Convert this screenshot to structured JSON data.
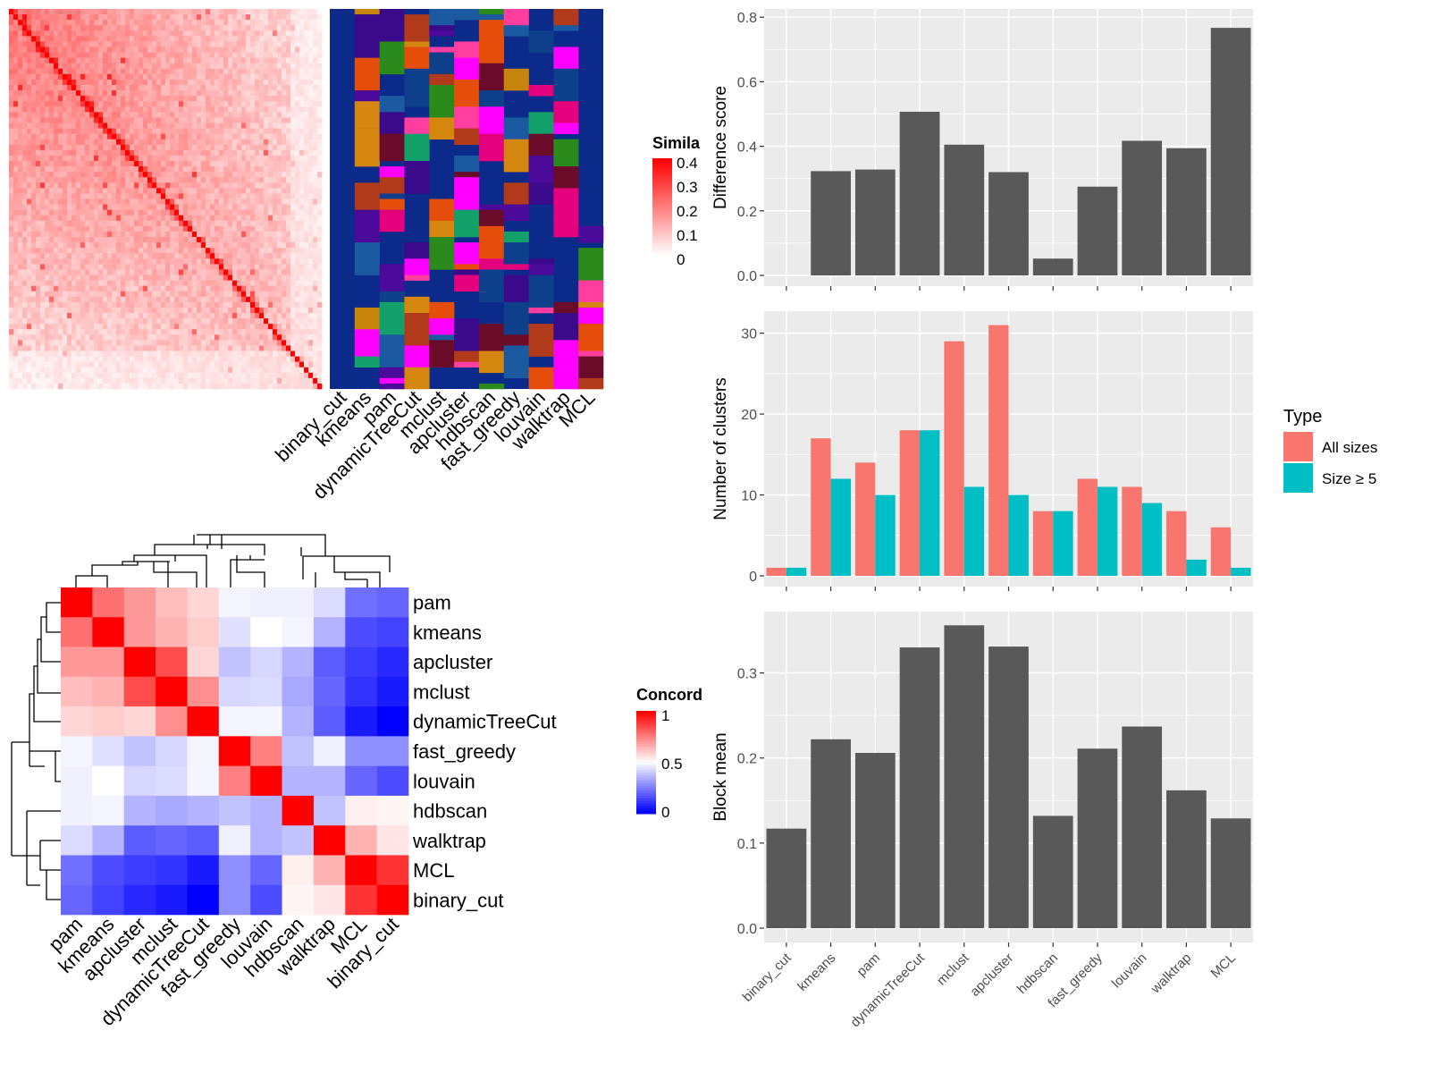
{
  "methods_order": [
    "binary_cut",
    "kmeans",
    "pam",
    "dynamicTreeCut",
    "mclust",
    "apcluster",
    "hdbscan",
    "fast_greedy",
    "louvain",
    "walktrap",
    "MCL"
  ],
  "similarity_heatmap": {
    "legend_title": "Simila",
    "legend_ticks": [
      "0.4",
      "0.3",
      "0.2",
      "0.1",
      "0"
    ],
    "high_color": "#ff0000",
    "low_color": "#ffffff"
  },
  "cluster_annotation": {
    "background_color": "#0b2a8a",
    "palette": [
      "#d4860f",
      "#c7850d",
      "#2a8a1c",
      "#ff00ff",
      "#e5007d",
      "#b03a1a",
      "#4b0a9a",
      "#e44e0a",
      "#1b5aa0",
      "#13a06a",
      "#6b0b2a",
      "#0e3f8a",
      "#ff3ea0",
      "#3a0a8a"
    ]
  },
  "concordance_heatmap": {
    "legend_title": "Concord",
    "legend_ticks": [
      "1",
      "0.5",
      "0"
    ],
    "row_labels": [
      "pam",
      "kmeans",
      "apcluster",
      "mclust",
      "dynamicTreeCut",
      "fast_greedy",
      "louvain",
      "hdbscan",
      "walktrap",
      "MCL",
      "binary_cut"
    ],
    "col_labels": [
      "pam",
      "kmeans",
      "apcluster",
      "mclust",
      "dynamicTreeCut",
      "fast_greedy",
      "louvain",
      "hdbscan",
      "walktrap",
      "MCL",
      "binary_cut"
    ],
    "matrix": [
      [
        1.0,
        0.78,
        0.7,
        0.63,
        0.58,
        0.48,
        0.47,
        0.47,
        0.43,
        0.22,
        0.2
      ],
      [
        0.78,
        1.0,
        0.7,
        0.65,
        0.6,
        0.44,
        0.5,
        0.48,
        0.35,
        0.15,
        0.13
      ],
      [
        0.7,
        0.7,
        1.0,
        0.85,
        0.58,
        0.38,
        0.42,
        0.35,
        0.18,
        0.12,
        0.08
      ],
      [
        0.63,
        0.65,
        0.85,
        1.0,
        0.72,
        0.42,
        0.43,
        0.33,
        0.2,
        0.1,
        0.05
      ],
      [
        0.58,
        0.6,
        0.58,
        0.72,
        1.0,
        0.48,
        0.48,
        0.35,
        0.18,
        0.05,
        0.0
      ],
      [
        0.48,
        0.44,
        0.38,
        0.42,
        0.48,
        1.0,
        0.75,
        0.38,
        0.47,
        0.28,
        0.28
      ],
      [
        0.47,
        0.5,
        0.42,
        0.43,
        0.48,
        0.75,
        1.0,
        0.35,
        0.35,
        0.2,
        0.15
      ],
      [
        0.47,
        0.48,
        0.35,
        0.33,
        0.35,
        0.38,
        0.35,
        1.0,
        0.38,
        0.53,
        0.52
      ],
      [
        0.43,
        0.35,
        0.18,
        0.2,
        0.18,
        0.47,
        0.35,
        0.38,
        1.0,
        0.65,
        0.55
      ],
      [
        0.22,
        0.15,
        0.12,
        0.1,
        0.05,
        0.28,
        0.2,
        0.53,
        0.65,
        1.0,
        0.9
      ],
      [
        0.2,
        0.13,
        0.08,
        0.05,
        0.0,
        0.28,
        0.15,
        0.52,
        0.55,
        0.9,
        1.0
      ]
    ],
    "high_color": "#ff0000",
    "mid_color": "#ffffff",
    "low_color": "#0000ff"
  },
  "chart_data": [
    {
      "type": "bar",
      "ylabel": "Difference score",
      "categories": [
        "binary_cut",
        "kmeans",
        "pam",
        "dynamicTreeCut",
        "mclust",
        "apcluster",
        "hdbscan",
        "fast_greedy",
        "louvain",
        "walktrap",
        "MCL"
      ],
      "values": [
        0.0,
        0.323,
        0.328,
        0.507,
        0.405,
        0.32,
        0.052,
        0.275,
        0.417,
        0.394,
        0.767
      ],
      "ylim": [
        0,
        0.82
      ],
      "yticks": [
        0.0,
        0.2,
        0.4,
        0.6,
        0.8
      ],
      "ytick_labels": [
        "0.0",
        "0.2",
        "0.4",
        "0.6",
        "0.8"
      ],
      "bar_color": "#595959",
      "grid": true
    },
    {
      "type": "bar",
      "ylabel": "Number of clusters",
      "categories": [
        "binary_cut",
        "kmeans",
        "pam",
        "dynamicTreeCut",
        "mclust",
        "apcluster",
        "hdbscan",
        "fast_greedy",
        "louvain",
        "walktrap",
        "MCL"
      ],
      "series": [
        {
          "name": "All sizes",
          "values": [
            1,
            17,
            14,
            18,
            29,
            31,
            8,
            12,
            11,
            8,
            6
          ],
          "color": "#f8766d"
        },
        {
          "name": "Size ≥ 5",
          "values": [
            1,
            12,
            10,
            18,
            11,
            10,
            8,
            11,
            9,
            2,
            1
          ],
          "color": "#00bfc4"
        }
      ],
      "ylim": [
        0,
        32.5
      ],
      "yticks": [
        0,
        10,
        20,
        30
      ],
      "ytick_labels": [
        "0",
        "10",
        "20",
        "30"
      ],
      "legend_title": "Type",
      "legend_placement": "right",
      "grid": true
    },
    {
      "type": "bar",
      "ylabel": "Block mean",
      "categories": [
        "binary_cut",
        "kmeans",
        "pam",
        "dynamicTreeCut",
        "mclust",
        "apcluster",
        "hdbscan",
        "fast_greedy",
        "louvain",
        "walktrap",
        "MCL"
      ],
      "values": [
        0.117,
        0.222,
        0.206,
        0.33,
        0.356,
        0.331,
        0.132,
        0.211,
        0.237,
        0.162,
        0.129
      ],
      "ylim": [
        0,
        0.37
      ],
      "yticks": [
        0.0,
        0.1,
        0.2,
        0.3
      ],
      "ytick_labels": [
        "0.0",
        "0.1",
        "0.2",
        "0.3"
      ],
      "bar_color": "#595959",
      "grid": true
    }
  ]
}
